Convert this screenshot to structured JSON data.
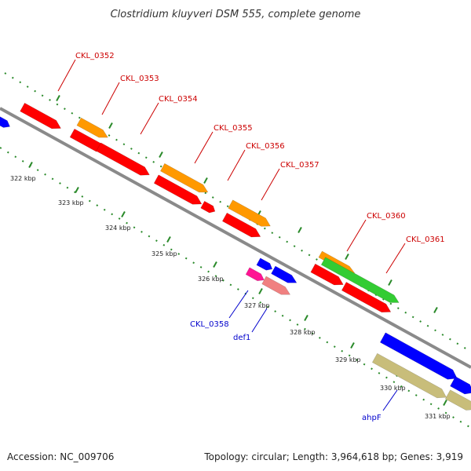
{
  "title": "Clostridium kluyveri DSM 555, complete genome",
  "footer": {
    "accession": "Accession: NC_009706",
    "topology": "Topology: circular; Length: 3,964,618 bp; Genes: 3,919"
  },
  "colors": {
    "backbone": "#8c8c8c",
    "tick_dots": "#2a8a2a",
    "label_red": "#cc0000",
    "label_blue": "#0000cc",
    "gene_red": "#ff0000",
    "gene_orange": "#ff9900",
    "gene_green": "#33cc33",
    "gene_blue": "#0000ff",
    "gene_pink": "#ff1493",
    "gene_salmon": "#f08080",
    "gene_tan": "#c8bd7a"
  },
  "ticks": [
    {
      "label": "322 kbp"
    },
    {
      "label": "323 kbp"
    },
    {
      "label": "324 kbp"
    },
    {
      "label": "325 kbp"
    },
    {
      "label": "326 kbp"
    },
    {
      "label": "327 kbp"
    },
    {
      "label": "328 kbp"
    },
    {
      "label": "329 kbp"
    },
    {
      "label": "330 kbp"
    },
    {
      "label": "331 kbp"
    }
  ],
  "gene_labels": [
    {
      "text": "CKL_0352",
      "color": "red"
    },
    {
      "text": "CKL_0353",
      "color": "red"
    },
    {
      "text": "CKL_0354",
      "color": "red"
    },
    {
      "text": "CKL_0355",
      "color": "red"
    },
    {
      "text": "CKL_0356",
      "color": "red"
    },
    {
      "text": "CKL_0357",
      "color": "red"
    },
    {
      "text": "CKL_0360",
      "color": "red"
    },
    {
      "text": "CKL_0361",
      "color": "red"
    },
    {
      "text": "CKL_0358",
      "color": "blue"
    },
    {
      "text": "def1",
      "color": "blue"
    },
    {
      "text": "ahpF",
      "color": "blue"
    }
  ]
}
